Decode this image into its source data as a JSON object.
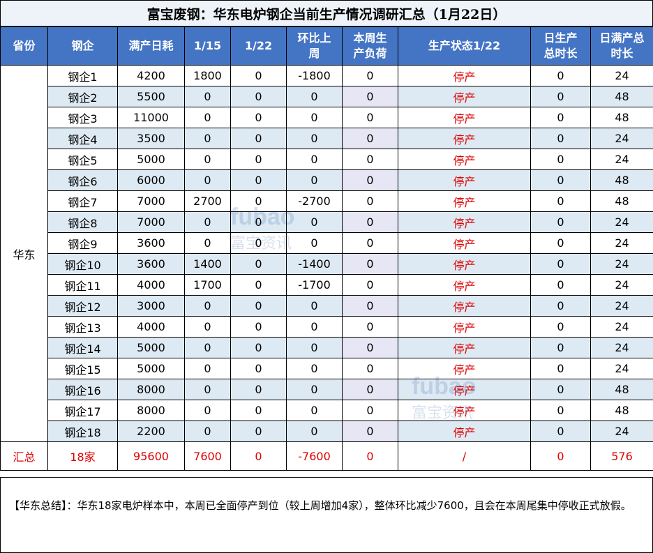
{
  "title": "富宝废钢：华东电炉钢企当前生产情况调研汇总（1月22日）",
  "headers": [
    "省份",
    "钢企",
    "满产日耗",
    "1/15",
    "1/22",
    "环比上周",
    "本周生产负荷",
    "生产状态1/22",
    "日生产总时长",
    "日满产总时长"
  ],
  "region": "华东",
  "rows": [
    {
      "name": "钢企1",
      "capacity": "4200",
      "d115": "1800",
      "d122": "0",
      "wow": "-1800",
      "load": "0",
      "status": "停产",
      "prod_hours": "0",
      "full_hours": "24"
    },
    {
      "name": "钢企2",
      "capacity": "5500",
      "d115": "0",
      "d122": "0",
      "wow": "0",
      "load": "0",
      "status": "停产",
      "prod_hours": "0",
      "full_hours": "48"
    },
    {
      "name": "钢企3",
      "capacity": "11000",
      "d115": "0",
      "d122": "0",
      "wow": "0",
      "load": "0",
      "status": "停产",
      "prod_hours": "0",
      "full_hours": "48"
    },
    {
      "name": "钢企4",
      "capacity": "3500",
      "d115": "0",
      "d122": "0",
      "wow": "0",
      "load": "0",
      "status": "停产",
      "prod_hours": "0",
      "full_hours": "24"
    },
    {
      "name": "钢企5",
      "capacity": "5000",
      "d115": "0",
      "d122": "0",
      "wow": "0",
      "load": "0",
      "status": "停产",
      "prod_hours": "0",
      "full_hours": "24"
    },
    {
      "name": "钢企6",
      "capacity": "6000",
      "d115": "0",
      "d122": "0",
      "wow": "0",
      "load": "0",
      "status": "停产",
      "prod_hours": "0",
      "full_hours": "48"
    },
    {
      "name": "钢企7",
      "capacity": "7000",
      "d115": "2700",
      "d122": "0",
      "wow": "-2700",
      "load": "0",
      "status": "停产",
      "prod_hours": "0",
      "full_hours": "48"
    },
    {
      "name": "钢企8",
      "capacity": "7000",
      "d115": "0",
      "d122": "0",
      "wow": "0",
      "load": "0",
      "status": "停产",
      "prod_hours": "0",
      "full_hours": "24"
    },
    {
      "name": "钢企9",
      "capacity": "3600",
      "d115": "0",
      "d122": "0",
      "wow": "0",
      "load": "0",
      "status": "停产",
      "prod_hours": "0",
      "full_hours": "24"
    },
    {
      "name": "钢企10",
      "capacity": "3600",
      "d115": "1400",
      "d122": "0",
      "wow": "-1400",
      "load": "0",
      "status": "停产",
      "prod_hours": "0",
      "full_hours": "24"
    },
    {
      "name": "钢企11",
      "capacity": "4000",
      "d115": "1700",
      "d122": "0",
      "wow": "-1700",
      "load": "0",
      "status": "停产",
      "prod_hours": "0",
      "full_hours": "24"
    },
    {
      "name": "钢企12",
      "capacity": "3000",
      "d115": "0",
      "d122": "0",
      "wow": "0",
      "load": "0",
      "status": "停产",
      "prod_hours": "0",
      "full_hours": "24"
    },
    {
      "name": "钢企13",
      "capacity": "4000",
      "d115": "0",
      "d122": "0",
      "wow": "0",
      "load": "0",
      "status": "停产",
      "prod_hours": "0",
      "full_hours": "24"
    },
    {
      "name": "钢企14",
      "capacity": "5000",
      "d115": "0",
      "d122": "0",
      "wow": "0",
      "load": "0",
      "status": "停产",
      "prod_hours": "0",
      "full_hours": "24"
    },
    {
      "name": "钢企15",
      "capacity": "5000",
      "d115": "0",
      "d122": "0",
      "wow": "0",
      "load": "0",
      "status": "停产",
      "prod_hours": "0",
      "full_hours": "24"
    },
    {
      "name": "钢企16",
      "capacity": "8000",
      "d115": "0",
      "d122": "0",
      "wow": "0",
      "load": "0",
      "status": "停产",
      "prod_hours": "0",
      "full_hours": "48"
    },
    {
      "name": "钢企17",
      "capacity": "8000",
      "d115": "0",
      "d122": "0",
      "wow": "0",
      "load": "0",
      "status": "停产",
      "prod_hours": "0",
      "full_hours": "48"
    },
    {
      "name": "钢企18",
      "capacity": "2200",
      "d115": "0",
      "d122": "0",
      "wow": "0",
      "load": "0",
      "status": "停产",
      "prod_hours": "0",
      "full_hours": "24"
    }
  ],
  "total": {
    "label": "汇总",
    "count": "18家",
    "capacity": "95600",
    "d115": "7600",
    "d122": "0",
    "wow": "-7600",
    "load": "0",
    "status": "/",
    "prod_hours": "0",
    "full_hours": "576"
  },
  "summary": "【华东总结】：华东18家电炉样本中，本周已全面停产到位（较上周增加4家），整体环比减少7600，且会在本周尾集中停收正式放假。",
  "watermark": {
    "latin": "fubao",
    "cn": "富宝资讯"
  },
  "colors": {
    "header_bg": "#4474c4",
    "alt_row": "#deeaf3",
    "status_red": "#e00000"
  }
}
